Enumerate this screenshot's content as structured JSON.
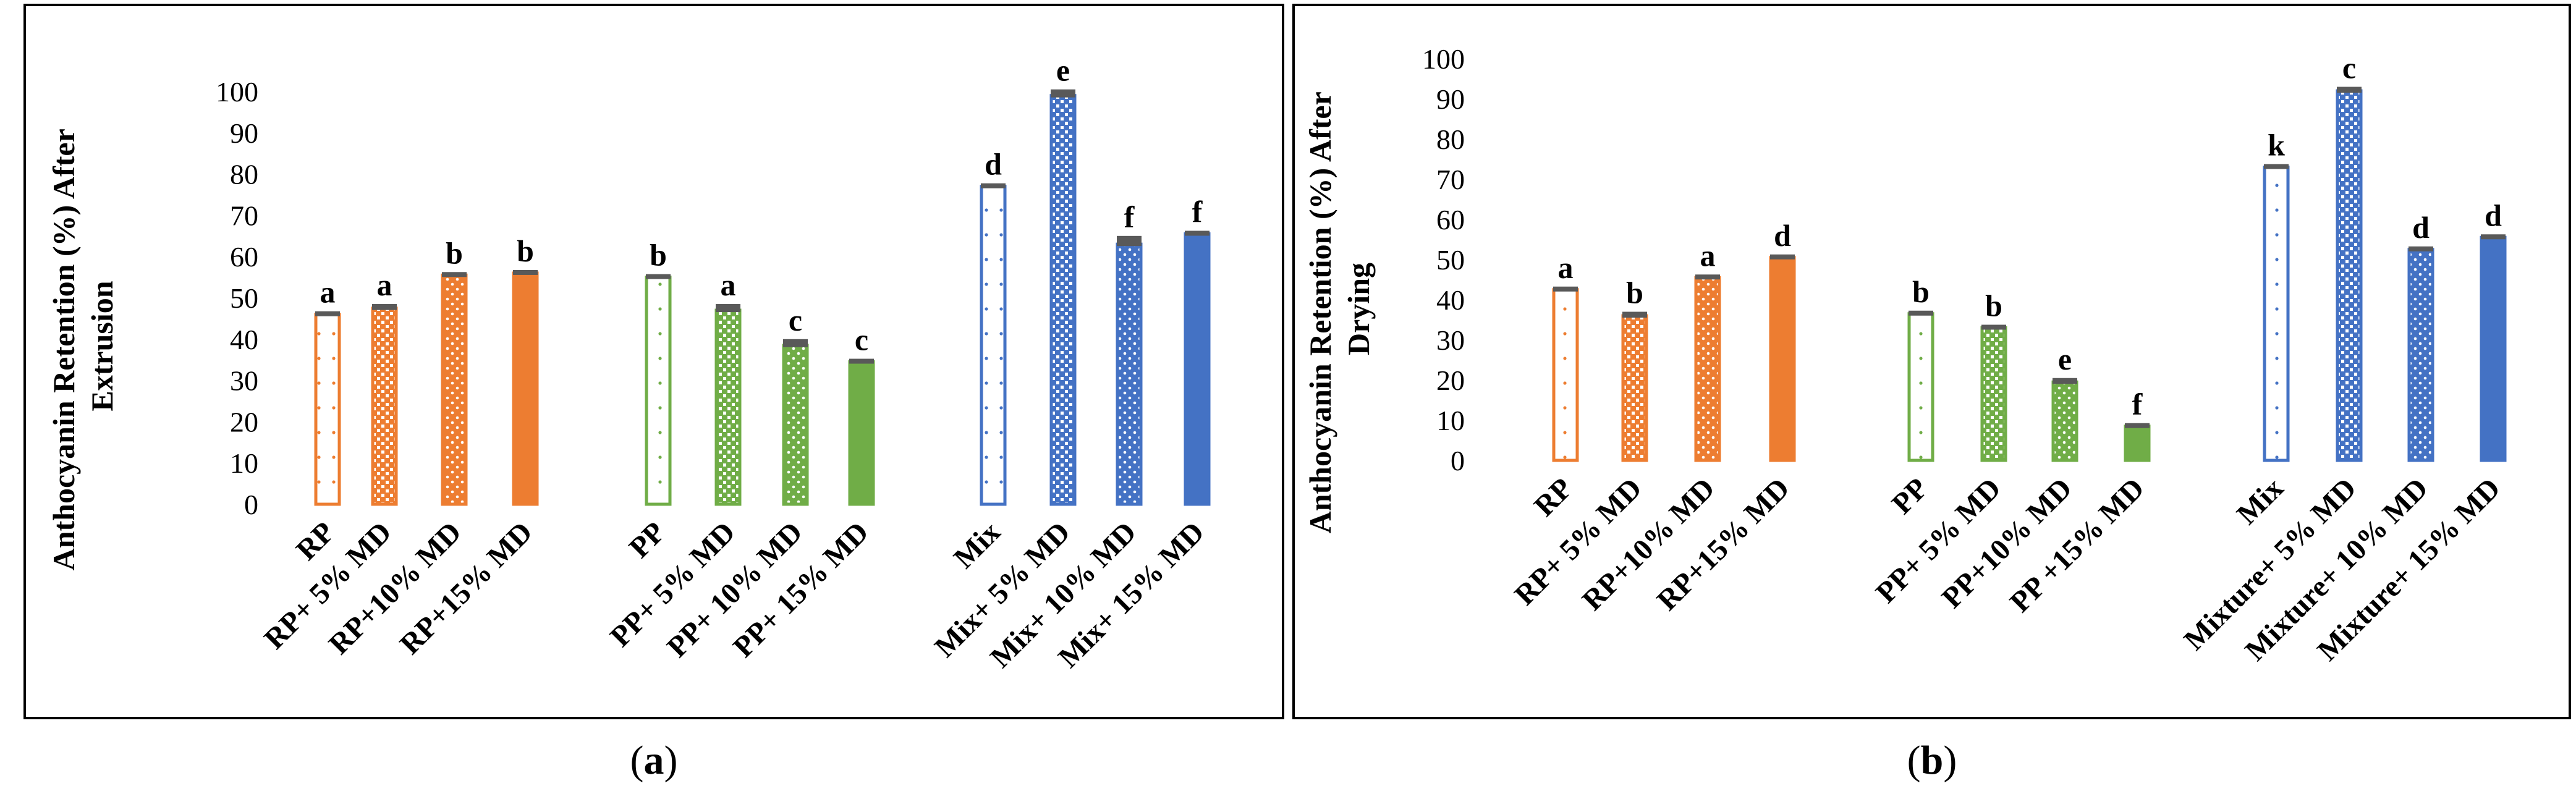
{
  "chart_data": [
    {
      "type": "bar",
      "panel_label": "a",
      "title": "",
      "ylabel": "Anthocyanin Retention (%) After Extrusion",
      "ylabel_lines": [
        "Anthocyanin Retention (%) After",
        "Extrusion"
      ],
      "xlabel": "",
      "ylim": [
        0,
        100
      ],
      "ytick_step": 10,
      "categories": [
        "RP",
        "RP+ 5% MD",
        "RP+10% MD",
        "RP+15% MD",
        "PP",
        "PP+ 5% MD",
        "PP+ 10% MD",
        "PP+ 15% MD",
        "Mix",
        "Mix+ 5% MD",
        "Mix+ 10% MD",
        "Mix+ 15% MD"
      ],
      "values": [
        46,
        47.5,
        55.5,
        56,
        55,
        47,
        38.5,
        34.5,
        77,
        99,
        63,
        65.5
      ],
      "errors": [
        0.5,
        1,
        0.5,
        0.5,
        0.5,
        1.5,
        1.5,
        0.5,
        0.5,
        1.5,
        2,
        0.5
      ],
      "significance_letters": [
        "a",
        "a",
        "b",
        "b",
        "b",
        "a",
        "c",
        "c",
        "d",
        "e",
        "f",
        "f"
      ],
      "groups": [
        "RP",
        "RP",
        "RP",
        "RP",
        "PP",
        "PP",
        "PP",
        "PP",
        "Mix",
        "Mix",
        "Mix",
        "Mix"
      ],
      "fills": [
        "outline",
        "dots-sparse",
        "dots-dense",
        "solid",
        "outline",
        "dots-sparse",
        "dots-dense",
        "solid",
        "outline",
        "dots-sparse",
        "dots-dense",
        "solid"
      ],
      "colors": {
        "RP": "#ED7D31",
        "PP": "#70AD47",
        "Mix": "#4472C4",
        "error_bar": "#595959"
      }
    },
    {
      "type": "bar",
      "panel_label": "b",
      "title": "",
      "ylabel": "Anthocyanin Retention (%) After Drying",
      "ylabel_lines": [
        "Anthocyanin Retention (%) After",
        "Drying"
      ],
      "xlabel": "",
      "ylim": [
        0,
        100
      ],
      "ytick_step": 10,
      "categories": [
        "RP",
        "RP+ 5% MD",
        "RP+10% MD",
        "RP+15% MD",
        "PP",
        "PP+ 5% MD",
        "PP+10% MD",
        "PP +15% MD",
        "Mix",
        "Mixture+ 5% MD",
        "Mixture+ 10% MD",
        "Mixture+ 15% MD"
      ],
      "values": [
        42.5,
        36,
        45.5,
        50.5,
        36.5,
        33,
        19.5,
        8.5,
        73,
        92,
        52.5,
        55.5
      ],
      "errors": [
        0.5,
        1,
        0.5,
        0.5,
        0.5,
        0.5,
        1,
        0.5,
        0.5,
        1,
        0.5,
        0.5
      ],
      "significance_letters": [
        "a",
        "b",
        "a",
        "d",
        "b",
        "b",
        "e",
        "f",
        "k",
        "c",
        "d",
        "d"
      ],
      "groups": [
        "RP",
        "RP",
        "RP",
        "RP",
        "PP",
        "PP",
        "PP",
        "PP",
        "Mix",
        "Mix",
        "Mix",
        "Mix"
      ],
      "fills": [
        "outline",
        "dots-sparse",
        "dots-dense",
        "solid",
        "outline",
        "dots-sparse",
        "dots-dense",
        "solid",
        "outline",
        "dots-sparse",
        "dots-dense",
        "solid"
      ],
      "colors": {
        "RP": "#ED7D31",
        "PP": "#70AD47",
        "Mix": "#4472C4",
        "error_bar": "#595959"
      }
    }
  ]
}
